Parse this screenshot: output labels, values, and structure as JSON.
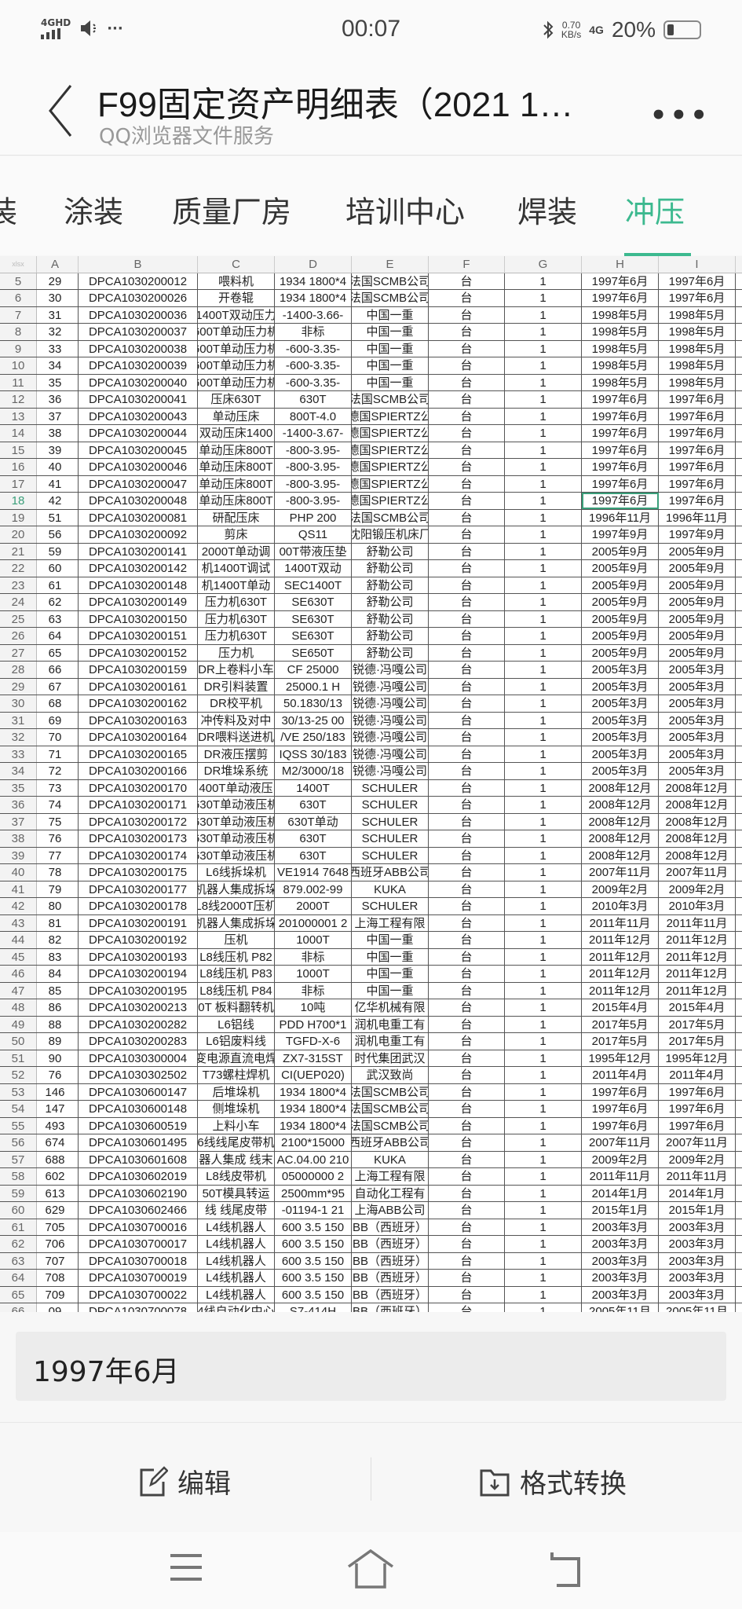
{
  "status_bar": {
    "network": "4GHD",
    "more": "···",
    "time": "00:07",
    "speed_value": "0.70",
    "speed_unit": "KB/s",
    "network2": "4G",
    "battery": "20%",
    "battery_level": 0.2
  },
  "header": {
    "title": "F99固定资产明细表（2021 1…",
    "subtitle": "QQ浏览器文件服务"
  },
  "tabs": [
    {
      "label": "装",
      "active": false
    },
    {
      "label": "涂装",
      "active": false
    },
    {
      "label": "质量厂房",
      "active": false
    },
    {
      "label": "培训中心",
      "active": false
    },
    {
      "label": "焊装",
      "active": false
    },
    {
      "label": "冲压",
      "active": true
    }
  ],
  "accent_color": "#3cb98f",
  "sheet": {
    "corner": "xlsx",
    "columns": [
      "A",
      "B",
      "C",
      "D",
      "E",
      "F",
      "G",
      "H",
      "I"
    ],
    "selected": {
      "row": "18",
      "col": "H"
    },
    "rows": [
      [
        "5",
        "29",
        "DPCA1030200012",
        "喂料机",
        "1934 1800*4",
        "法国SCMB公司",
        "台",
        "1",
        "1997年6月",
        "1997年6月"
      ],
      [
        "6",
        "30",
        "DPCA1030200026",
        "开卷辊",
        "1934 1800*4",
        "法国SCMB公司",
        "台",
        "1",
        "1997年6月",
        "1997年6月"
      ],
      [
        "7",
        "31",
        "DPCA1030200036",
        "1400T双动压力",
        "-1400-3.66-",
        "中国一重",
        "台",
        "1",
        "1998年5月",
        "1998年5月"
      ],
      [
        "8",
        "32",
        "DPCA1030200037",
        "600T单动压力机",
        "非标",
        "中国一重",
        "台",
        "1",
        "1998年5月",
        "1998年5月"
      ],
      [
        "9",
        "33",
        "DPCA1030200038",
        "600T单动压力机",
        "-600-3.35-",
        "中国一重",
        "台",
        "1",
        "1998年5月",
        "1998年5月"
      ],
      [
        "10",
        "34",
        "DPCA1030200039",
        "600T单动压力机",
        "-600-3.35-",
        "中国一重",
        "台",
        "1",
        "1998年5月",
        "1998年5月"
      ],
      [
        "11",
        "35",
        "DPCA1030200040",
        "600T单动压力机",
        "-600-3.35-",
        "中国一重",
        "台",
        "1",
        "1998年5月",
        "1998年5月"
      ],
      [
        "12",
        "36",
        "DPCA1030200041",
        "压床630T",
        "630T",
        "法国SCMB公司",
        "台",
        "1",
        "1997年6月",
        "1997年6月"
      ],
      [
        "13",
        "37",
        "DPCA1030200043",
        "单动压床",
        "800T-4.0",
        "德国SPIERTZ公",
        "台",
        "1",
        "1997年6月",
        "1997年6月"
      ],
      [
        "14",
        "38",
        "DPCA1030200044",
        "双动压床1400",
        "-1400-3.67-",
        "德国SPIERTZ公",
        "台",
        "1",
        "1997年6月",
        "1997年6月"
      ],
      [
        "15",
        "39",
        "DPCA1030200045",
        "单动压床800T",
        "-800-3.95-",
        "德国SPIERTZ公",
        "台",
        "1",
        "1997年6月",
        "1997年6月"
      ],
      [
        "16",
        "40",
        "DPCA1030200046",
        "单动压床800T",
        "-800-3.95-",
        "德国SPIERTZ公",
        "台",
        "1",
        "1997年6月",
        "1997年6月"
      ],
      [
        "17",
        "41",
        "DPCA1030200047",
        "单动压床800T",
        "-800-3.95-",
        "德国SPIERTZ公",
        "台",
        "1",
        "1997年6月",
        "1997年6月"
      ],
      [
        "18",
        "42",
        "DPCA1030200048",
        "单动压床800T",
        "-800-3.95-",
        "德国SPIERTZ公",
        "台",
        "1",
        "1997年6月",
        "1997年6月"
      ],
      [
        "19",
        "51",
        "DPCA1030200081",
        "研配压床",
        "PHP 200",
        "法国SCMB公司",
        "台",
        "1",
        "1996年11月",
        "1996年11月"
      ],
      [
        "20",
        "56",
        "DPCA1030200092",
        "剪床",
        "QS11",
        "沈阳锻压机床厂",
        "台",
        "1",
        "1997年9月",
        "1997年9月"
      ],
      [
        "21",
        "59",
        "DPCA1030200141",
        "2000T单动调",
        "00T带液压垫",
        "舒勒公司",
        "台",
        "1",
        "2005年9月",
        "2005年9月"
      ],
      [
        "22",
        "60",
        "DPCA1030200142",
        "机1400T调试",
        "1400T双动",
        "舒勒公司",
        "台",
        "1",
        "2005年9月",
        "2005年9月"
      ],
      [
        "23",
        "61",
        "DPCA1030200148",
        "机1400T单动",
        "SEC1400T",
        "舒勒公司",
        "台",
        "1",
        "2005年9月",
        "2005年9月"
      ],
      [
        "24",
        "62",
        "DPCA1030200149",
        "压力机630T",
        "SE630T",
        "舒勒公司",
        "台",
        "1",
        "2005年9月",
        "2005年9月"
      ],
      [
        "25",
        "63",
        "DPCA1030200150",
        "压力机630T",
        "SE630T",
        "舒勒公司",
        "台",
        "1",
        "2005年9月",
        "2005年9月"
      ],
      [
        "26",
        "64",
        "DPCA1030200151",
        "压力机630T",
        "SE630T",
        "舒勒公司",
        "台",
        "1",
        "2005年9月",
        "2005年9月"
      ],
      [
        "27",
        "65",
        "DPCA1030200152",
        "压力机",
        "SE650T",
        "舒勒公司",
        "台",
        "1",
        "2005年9月",
        "2005年9月"
      ],
      [
        "28",
        "66",
        "DPCA1030200159",
        "DR上卷料小车",
        "CF 25000",
        "锐德·冯嘎公司",
        "台",
        "1",
        "2005年3月",
        "2005年3月"
      ],
      [
        "29",
        "67",
        "DPCA1030200161",
        "DR引料装置",
        "25000.1 H",
        "锐德·冯嘎公司",
        "台",
        "1",
        "2005年3月",
        "2005年3月"
      ],
      [
        "30",
        "68",
        "DPCA1030200162",
        "DR校平机",
        "50.1830/13",
        "锐德·冯嘎公司",
        "台",
        "1",
        "2005年3月",
        "2005年3月"
      ],
      [
        "31",
        "69",
        "DPCA1030200163",
        "冲传料及对中",
        "30/13-25 00",
        "锐德·冯嘎公司",
        "台",
        "1",
        "2005年3月",
        "2005年3月"
      ],
      [
        "32",
        "70",
        "DPCA1030200164",
        "DR喂料送进机",
        "/VE 250/183",
        "锐德·冯嘎公司",
        "台",
        "1",
        "2005年3月",
        "2005年3月"
      ],
      [
        "33",
        "71",
        "DPCA1030200165",
        "DR液压摆剪",
        "IQSS 30/183",
        "锐德·冯嘎公司",
        "台",
        "1",
        "2005年3月",
        "2005年3月"
      ],
      [
        "34",
        "72",
        "DPCA1030200166",
        "DR堆垛系统",
        "M2/3000/18",
        "锐德·冯嘎公司",
        "台",
        "1",
        "2005年3月",
        "2005年3月"
      ],
      [
        "35",
        "73",
        "DPCA1030200170",
        "400T单动液压",
        "1400T",
        "SCHULER",
        "台",
        "1",
        "2008年12月",
        "2008年12月"
      ],
      [
        "36",
        "74",
        "DPCA1030200171",
        "630T单动液压机",
        "630T",
        "SCHULER",
        "台",
        "1",
        "2008年12月",
        "2008年12月"
      ],
      [
        "37",
        "75",
        "DPCA1030200172",
        "630T单动液压机",
        "630T单动",
        "SCHULER",
        "台",
        "1",
        "2008年12月",
        "2008年12月"
      ],
      [
        "38",
        "76",
        "DPCA1030200173",
        "630T单动液压机",
        "630T",
        "SCHULER",
        "台",
        "1",
        "2008年12月",
        "2008年12月"
      ],
      [
        "39",
        "77",
        "DPCA1030200174",
        "630T单动液压机",
        "630T",
        "SCHULER",
        "台",
        "1",
        "2008年12月",
        "2008年12月"
      ],
      [
        "40",
        "78",
        "DPCA1030200175",
        "L6线拆垛机",
        "VE1914 7648",
        "西班牙ABB公司",
        "台",
        "1",
        "2007年11月",
        "2007年11月"
      ],
      [
        "41",
        "79",
        "DPCA1030200177",
        "机器人集成拆垛",
        "879.002-99",
        "KUKA",
        "台",
        "1",
        "2009年2月",
        "2009年2月"
      ],
      [
        "42",
        "80",
        "DPCA1030200178",
        "L8线2000T压机",
        "2000T",
        "SCHULER",
        "台",
        "1",
        "2010年3月",
        "2010年3月"
      ],
      [
        "43",
        "81",
        "DPCA1030200191",
        "机器人集成拆垛",
        "201000001 2",
        "上海工程有限",
        "台",
        "1",
        "2011年11月",
        "2011年11月"
      ],
      [
        "44",
        "82",
        "DPCA1030200192",
        "压机",
        "1000T",
        "中国一重",
        "台",
        "1",
        "2011年12月",
        "2011年12月"
      ],
      [
        "45",
        "83",
        "DPCA1030200193",
        "L8线压机 P82",
        "非标",
        "中国一重",
        "台",
        "1",
        "2011年12月",
        "2011年12月"
      ],
      [
        "46",
        "84",
        "DPCA1030200194",
        "L8线压机 P83",
        "1000T",
        "中国一重",
        "台",
        "1",
        "2011年12月",
        "2011年12月"
      ],
      [
        "47",
        "85",
        "DPCA1030200195",
        "L8线压机 P84",
        "非标",
        "中国一重",
        "台",
        "1",
        "2011年12月",
        "2011年12月"
      ],
      [
        "48",
        "86",
        "DPCA1030200213",
        "0T 板料翻转机",
        "10吨",
        "亿华机械有限",
        "台",
        "1",
        "2015年4月",
        "2015年4月"
      ],
      [
        "49",
        "88",
        "DPCA1030200282",
        "L6铝线",
        "PDD H700*1",
        "润机电重工有",
        "台",
        "1",
        "2017年5月",
        "2017年5月"
      ],
      [
        "50",
        "89",
        "DPCA1030200283",
        "L6铝废料线",
        "TGFD-X-6",
        "润机电重工有",
        "台",
        "1",
        "2017年5月",
        "2017年5月"
      ],
      [
        "51",
        "90",
        "DPCA1030300004",
        "变电源直流电焊",
        "ZX7-315ST",
        "时代集团武汉",
        "台",
        "1",
        "1995年12月",
        "1995年12月"
      ],
      [
        "52",
        "76",
        "DPCA1030302502",
        "T73螺柱焊机",
        "CI(UEP020)",
        "武汉致尚",
        "台",
        "1",
        "2011年4月",
        "2011年4月"
      ],
      [
        "53",
        "146",
        "DPCA1030600147",
        "后堆垛机",
        "1934 1800*4",
        "法国SCMB公司",
        "台",
        "1",
        "1997年6月",
        "1997年6月"
      ],
      [
        "54",
        "147",
        "DPCA1030600148",
        "侧堆垛机",
        "1934 1800*4",
        "法国SCMB公司",
        "台",
        "1",
        "1997年6月",
        "1997年6月"
      ],
      [
        "55",
        "493",
        "DPCA1030600519",
        "上料小车",
        "1934 1800*4",
        "法国SCMB公司",
        "台",
        "1",
        "1997年6月",
        "1997年6月"
      ],
      [
        "56",
        "674",
        "DPCA1030601495",
        "6线线尾皮带机",
        "2100*15000",
        "西班牙ABB公司",
        "台",
        "1",
        "2007年11月",
        "2007年11月"
      ],
      [
        "57",
        "688",
        "DPCA1030601608",
        "器人集成 线末",
        "AC.04.00 210",
        "KUKA",
        "台",
        "1",
        "2009年2月",
        "2009年2月"
      ],
      [
        "58",
        "602",
        "DPCA1030602019",
        "L8线皮带机",
        "05000000 2",
        "上海工程有限",
        "台",
        "1",
        "2011年11月",
        "2011年11月"
      ],
      [
        "59",
        "613",
        "DPCA1030602190",
        "50T模具转运",
        "2500mm*95",
        "自动化工程有",
        "台",
        "1",
        "2014年1月",
        "2014年1月"
      ],
      [
        "60",
        "629",
        "DPCA1030602466",
        "线 线尾皮带",
        "-01194-1 21",
        "上海ABB公司",
        "台",
        "1",
        "2015年1月",
        "2015年1月"
      ],
      [
        "61",
        "705",
        "DPCA1030700016",
        "L4线机器人",
        "600 3.5 150",
        "BB（西班牙）",
        "台",
        "1",
        "2003年3月",
        "2003年3月"
      ],
      [
        "62",
        "706",
        "DPCA1030700017",
        "L4线机器人",
        "600 3.5 150",
        "BB（西班牙）",
        "台",
        "1",
        "2003年3月",
        "2003年3月"
      ],
      [
        "63",
        "707",
        "DPCA1030700018",
        "L4线机器人",
        "600 3.5 150",
        "BB（西班牙）",
        "台",
        "1",
        "2003年3月",
        "2003年3月"
      ],
      [
        "64",
        "708",
        "DPCA1030700019",
        "L4线机器人",
        "600 3.5 150",
        "BB（西班牙）",
        "台",
        "1",
        "2003年3月",
        "2003年3月"
      ],
      [
        "65",
        "709",
        "DPCA1030700022",
        "L4线机器人",
        "600 3.5 150",
        "BB（西班牙）",
        "台",
        "1",
        "2003年3月",
        "2003年3月"
      ],
      [
        "66",
        "09",
        "DPCA1030700078",
        "4线自动化中心",
        "S7-414H",
        "BB（西班牙）",
        "台",
        "1",
        "2005年11月",
        "2005年11月"
      ]
    ]
  },
  "formula_bar": {
    "value": "1997年6月"
  },
  "toolbar": {
    "edit_label": "编辑",
    "convert_label": "格式转换"
  }
}
